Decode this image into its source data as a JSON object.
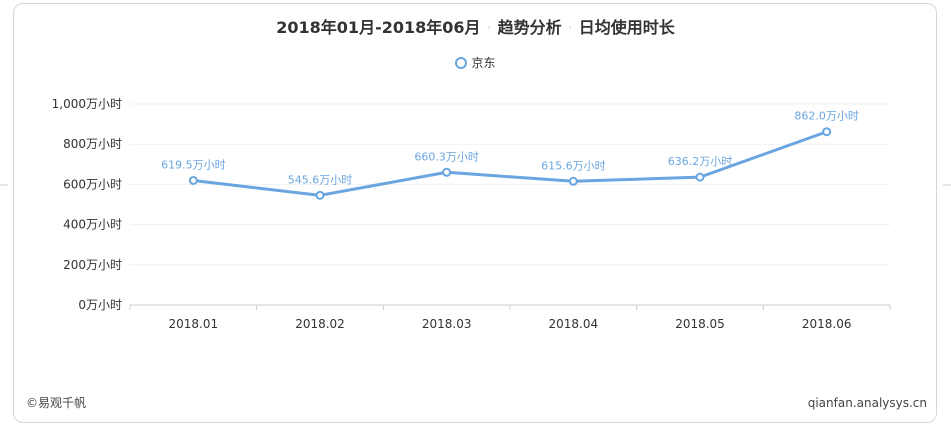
{
  "header": {
    "period": "2018年01月-2018年06月",
    "section": "趋势分析",
    "metric": "日均使用时长"
  },
  "chart_data": {
    "type": "line",
    "title": "2018年01月-2018年06月 · 趋势分析 · 日均使用时长",
    "categories": [
      "2018.01",
      "2018.02",
      "2018.03",
      "2018.04",
      "2018.05",
      "2018.06"
    ],
    "series": [
      {
        "name": "京东",
        "values": [
          619.5,
          545.6,
          660.3,
          615.6,
          636.2,
          862.0
        ],
        "labels": [
          "619.5万小时",
          "545.6万小时",
          "660.3万小时",
          "615.6万小时",
          "636.2万小时",
          "862.0万小时"
        ]
      }
    ],
    "yticks": [
      "0万小时",
      "200万小时",
      "400万小时",
      "600万小时",
      "800万小时",
      "1,000万小时"
    ],
    "ylim": [
      0,
      1000
    ],
    "grid": true,
    "legend": "top-center",
    "colors": {
      "line": "#6aa5e0",
      "label": "#6aa5e0",
      "grid": "#f0f0f0",
      "axis": "#cccccc"
    }
  },
  "footer": {
    "source": "©易观千帆",
    "site": "qianfan.analysys.cn"
  }
}
